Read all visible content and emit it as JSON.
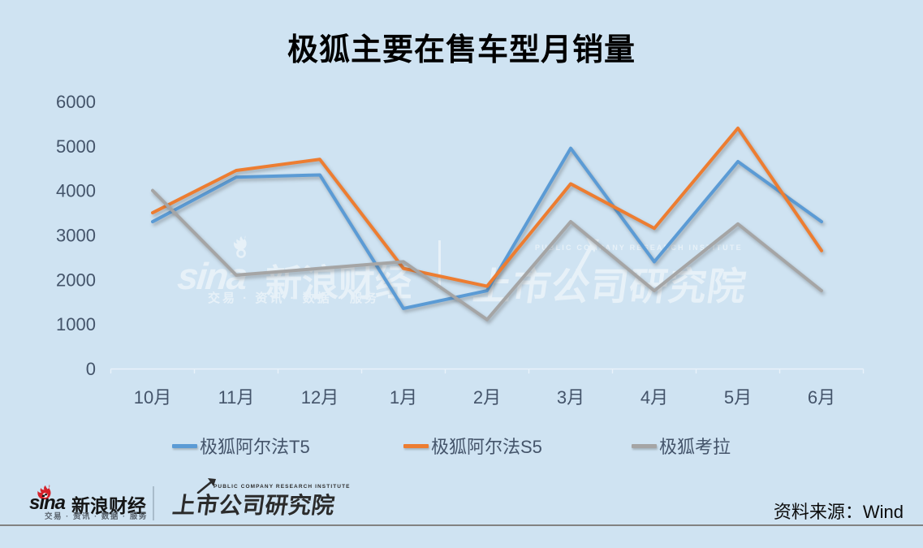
{
  "page": {
    "background": "#cfe3f2"
  },
  "chart_data": {
    "type": "line",
    "title": "极狐主要在售车型月销量",
    "categories": [
      "10月",
      "11月",
      "12月",
      "1月",
      "2月",
      "3月",
      "4月",
      "5月",
      "6月"
    ],
    "series": [
      {
        "name": "极狐阿尔法T5",
        "color": "#5b9bd5",
        "values": [
          3300,
          4300,
          4350,
          1350,
          1750,
          4950,
          2400,
          4650,
          3300
        ]
      },
      {
        "name": "极狐阿尔法S5",
        "color": "#ed7d31",
        "values": [
          3500,
          4450,
          4700,
          2250,
          1850,
          4150,
          3150,
          5400,
          2650
        ]
      },
      {
        "name": "极狐考拉",
        "color": "#a5a5a5",
        "values": [
          4000,
          2100,
          2250,
          2400,
          1100,
          3300,
          1750,
          3250,
          1750
        ]
      }
    ],
    "ylim": [
      0,
      6000
    ],
    "ytick_interval": 1000,
    "yticks": [
      "0",
      "1000",
      "2000",
      "3000",
      "4000",
      "5000",
      "6000"
    ],
    "grid": false,
    "legend_position": "bottom",
    "axis_text_color": "#44546a"
  },
  "watermark": {
    "sina_wordmark": "sina",
    "sina_name": "新浪财经",
    "sina_services": "交易 · 资讯 · 数据 · 服务",
    "pcri_caption": "PUBLIC COMPANY RESEARCH INSTITUTE",
    "pcri_name": "上市公司研究院"
  },
  "footer": {
    "sina_wordmark": "sina",
    "sina_name": "新浪财经",
    "sina_services": "交易 · 资讯 · 数据 · 服务",
    "pcri_caption": "PUBLIC COMPANY RESEARCH INSTITUTE",
    "pcri_name": "上市公司研究院",
    "source_note": "资料来源：Wind"
  }
}
